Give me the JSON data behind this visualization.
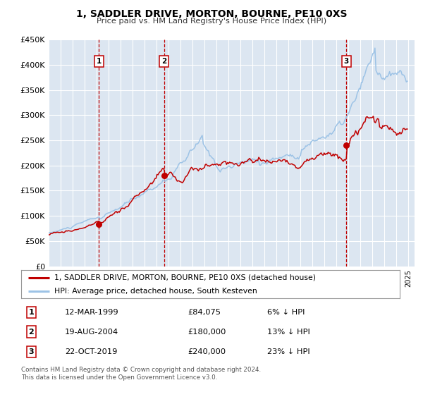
{
  "title": "1, SADDLER DRIVE, MORTON, BOURNE, PE10 0XS",
  "subtitle": "Price paid vs. HM Land Registry's House Price Index (HPI)",
  "background_color": "#ffffff",
  "plot_bg_color": "#dce6f1",
  "grid_color": "#ffffff",
  "sale_color": "#c00000",
  "hpi_color": "#9dc3e6",
  "vline_color": "#c00000",
  "ylim": [
    0,
    450000
  ],
  "yticks": [
    0,
    50000,
    100000,
    150000,
    200000,
    250000,
    300000,
    350000,
    400000,
    450000
  ],
  "ytick_labels": [
    "£0",
    "£50K",
    "£100K",
    "£150K",
    "£200K",
    "£250K",
    "£300K",
    "£350K",
    "£400K",
    "£450K"
  ],
  "sale_points": [
    {
      "date": 1999.19,
      "price": 84075,
      "label": "1"
    },
    {
      "date": 2004.63,
      "price": 180000,
      "label": "2"
    },
    {
      "date": 2019.81,
      "price": 240000,
      "label": "3"
    }
  ],
  "vline_dates": [
    1999.19,
    2004.63,
    2019.81
  ],
  "legend_sale_label": "1, SADDLER DRIVE, MORTON, BOURNE, PE10 0XS (detached house)",
  "legend_hpi_label": "HPI: Average price, detached house, South Kesteven",
  "table_rows": [
    {
      "num": "1",
      "date": "12-MAR-1999",
      "price": "£84,075",
      "change": "6% ↓ HPI"
    },
    {
      "num": "2",
      "date": "19-AUG-2004",
      "price": "£180,000",
      "change": "13% ↓ HPI"
    },
    {
      "num": "3",
      "date": "22-OCT-2019",
      "price": "£240,000",
      "change": "23% ↓ HPI"
    }
  ],
  "footer": "Contains HM Land Registry data © Crown copyright and database right 2024.\nThis data is licensed under the Open Government Licence v3.0.",
  "xmin": 1995.0,
  "xmax": 2025.5
}
